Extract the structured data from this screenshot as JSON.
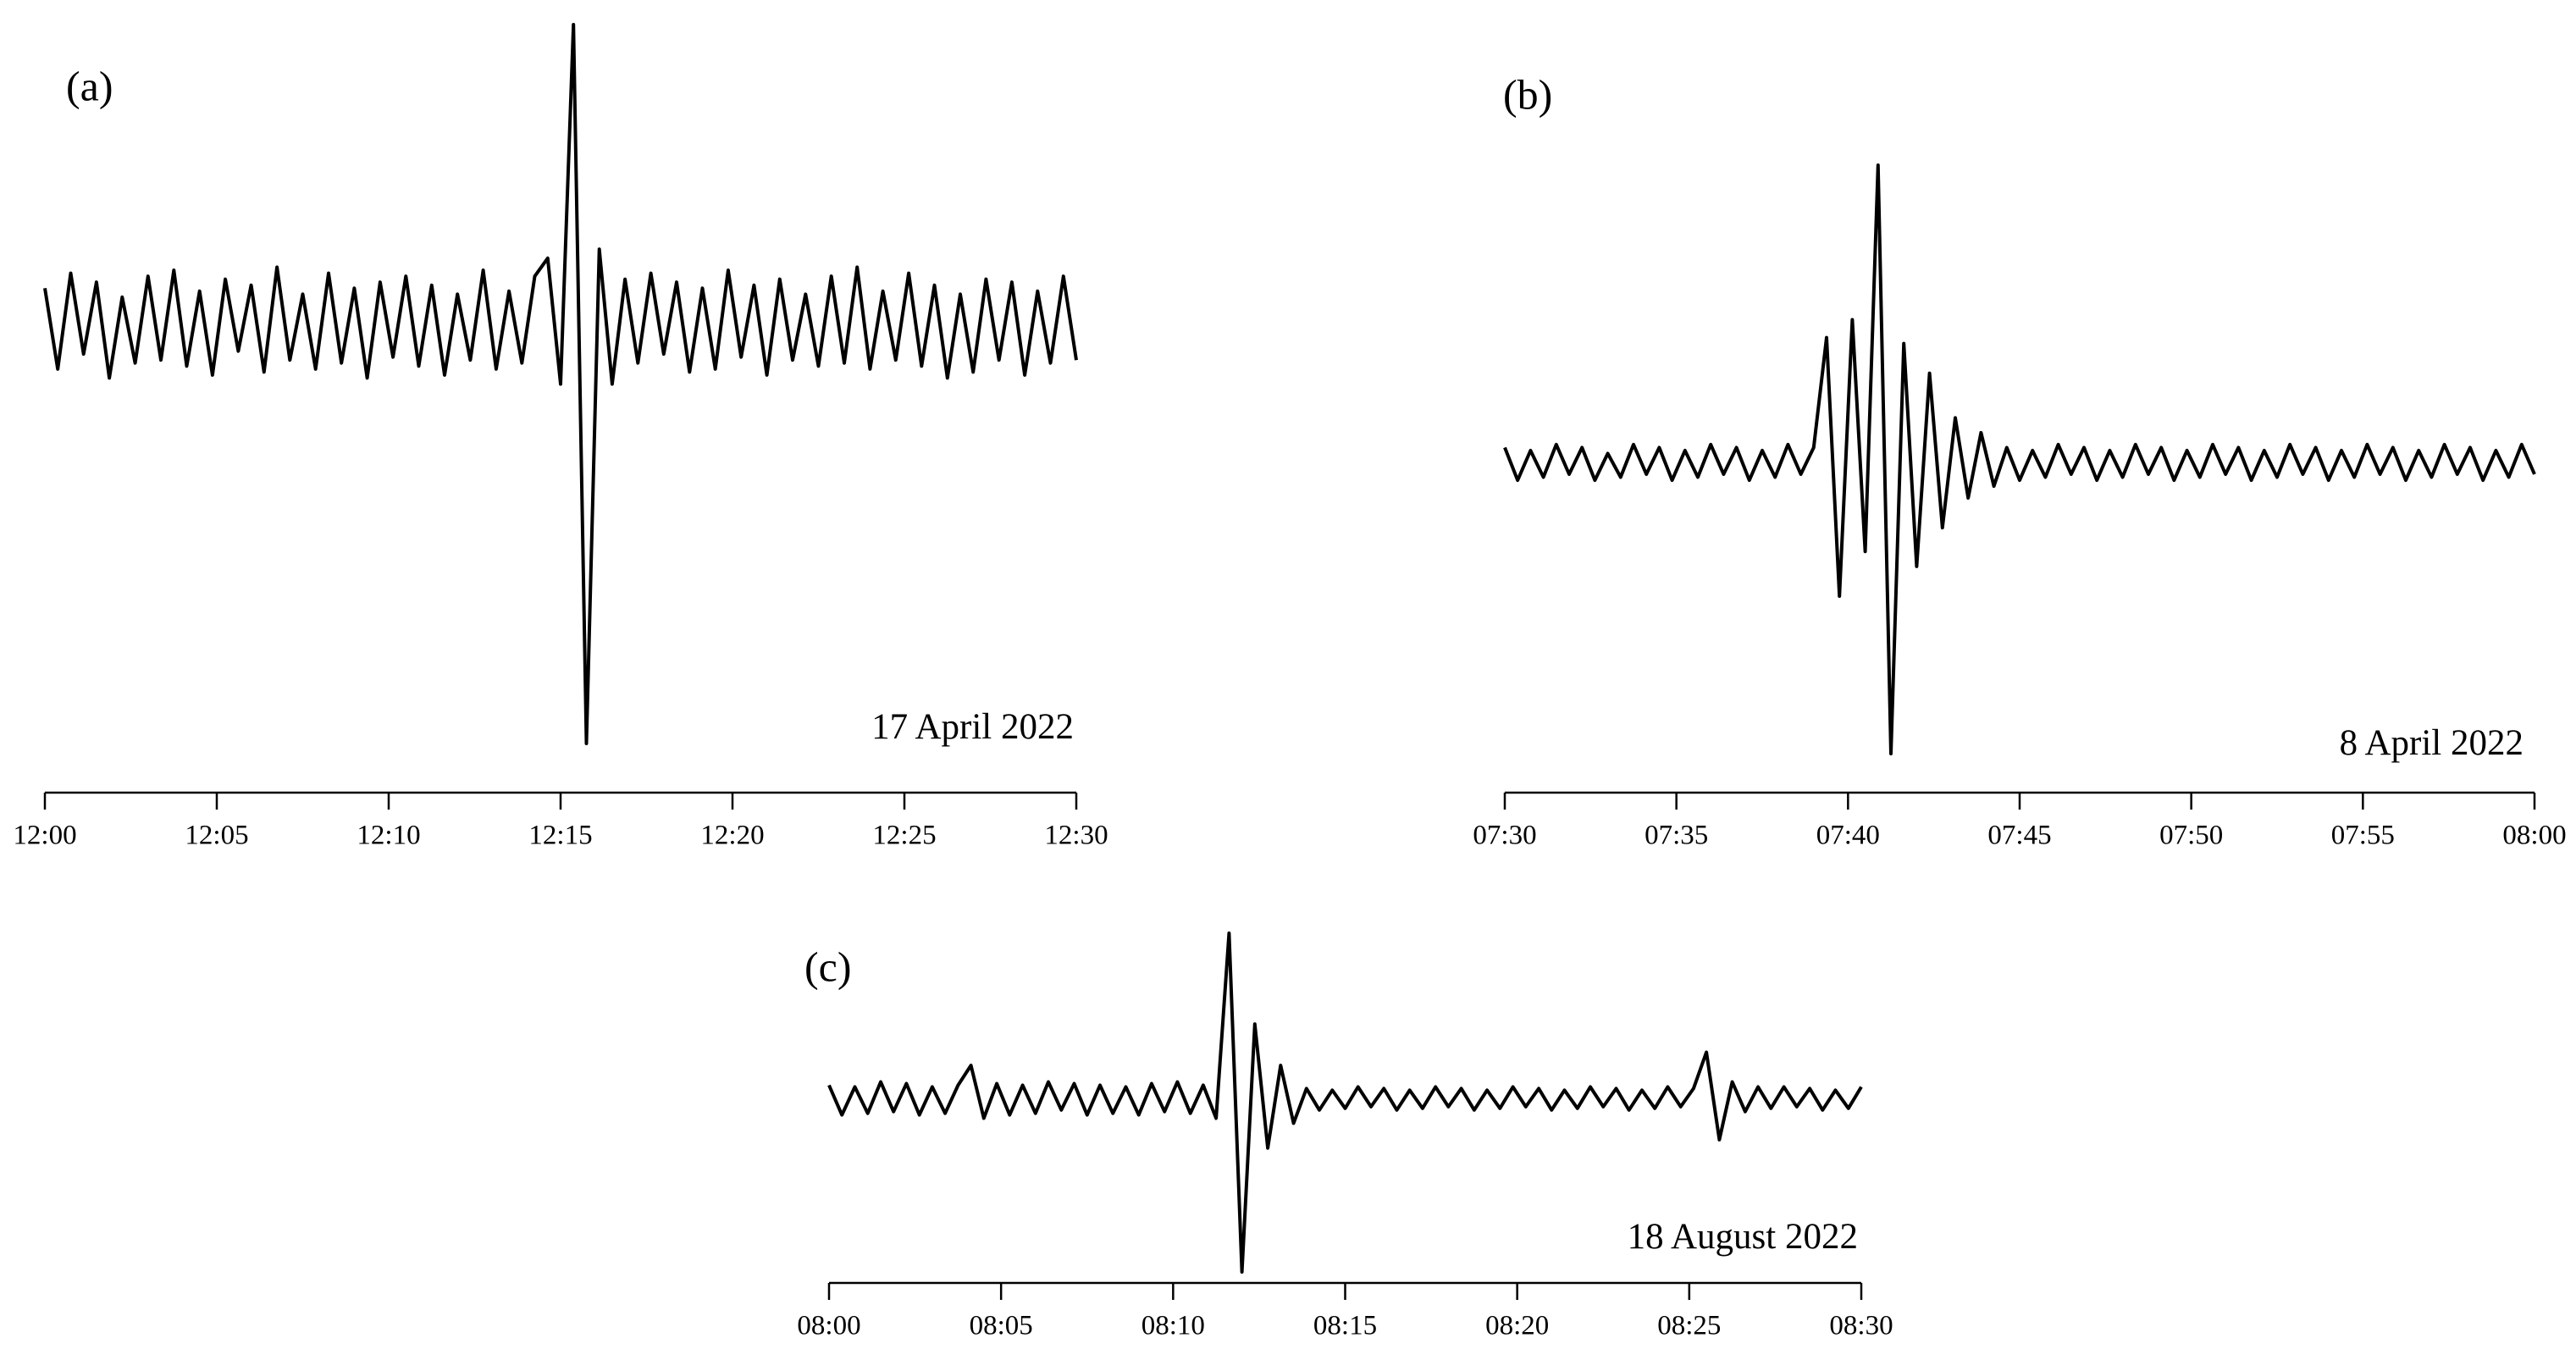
{
  "chart_data": [
    {
      "type": "line",
      "label": "(a)",
      "annotation": "17 April 2022",
      "color": "#000000",
      "xlim": [
        "12:00",
        "12:30"
      ],
      "xticks": [
        "12:00",
        "12:05",
        "12:10",
        "12:15",
        "12:20",
        "12:25",
        "12:30"
      ],
      "ylim": [
        -1.4,
        1
      ],
      "values": [
        0.12,
        -0.15,
        0.17,
        -0.1,
        0.14,
        -0.18,
        0.09,
        -0.13,
        0.16,
        -0.12,
        0.18,
        -0.14,
        0.11,
        -0.17,
        0.15,
        -0.09,
        0.13,
        -0.16,
        0.19,
        -0.12,
        0.1,
        -0.15,
        0.17,
        -0.13,
        0.12,
        -0.18,
        0.14,
        -0.11,
        0.16,
        -0.14,
        0.13,
        -0.17,
        0.1,
        -0.12,
        0.18,
        -0.15,
        0.11,
        -0.13,
        0.16,
        0.22,
        -0.2,
        1,
        -1.4,
        0.25,
        -0.2,
        0.15,
        -0.13,
        0.17,
        -0.1,
        0.14,
        -0.16,
        0.12,
        -0.15,
        0.18,
        -0.11,
        0.13,
        -0.17,
        0.15,
        -0.12,
        0.1,
        -0.14,
        0.16,
        -0.13,
        0.19,
        -0.15,
        0.11,
        -0.12,
        0.17,
        -0.14,
        0.13,
        -0.18,
        0.1,
        -0.16,
        0.15,
        -0.12,
        0.14,
        -0.17,
        0.11,
        -0.13,
        0.16,
        -0.12
      ]
    },
    {
      "type": "line",
      "label": "(b)",
      "annotation": "8 April 2022",
      "color": "#000000",
      "xlim": [
        "07:30",
        "08:00"
      ],
      "xticks": [
        "07:30",
        "07:35",
        "07:40",
        "07:45",
        "07:50",
        "07:55",
        "08:00"
      ],
      "ylim": [
        -1,
        1
      ],
      "values": [
        0.05,
        -0.06,
        0.04,
        -0.05,
        0.06,
        -0.04,
        0.05,
        -0.06,
        0.03,
        -0.05,
        0.06,
        -0.04,
        0.05,
        -0.06,
        0.04,
        -0.05,
        0.06,
        -0.04,
        0.05,
        -0.06,
        0.04,
        -0.05,
        0.06,
        -0.04,
        0.05,
        0.42,
        -0.45,
        0.48,
        -0.3,
        1,
        -0.98,
        0.4,
        -0.35,
        0.3,
        -0.22,
        0.15,
        -0.12,
        0.1,
        -0.08,
        0.05,
        -0.06,
        0.04,
        -0.05,
        0.06,
        -0.04,
        0.05,
        -0.06,
        0.04,
        -0.05,
        0.06,
        -0.04,
        0.05,
        -0.06,
        0.04,
        -0.05,
        0.06,
        -0.04,
        0.05,
        -0.06,
        0.04,
        -0.05,
        0.06,
        -0.04,
        0.05,
        -0.06,
        0.04,
        -0.05,
        0.06,
        -0.04,
        0.05,
        -0.06,
        0.04,
        -0.05,
        0.06,
        -0.04,
        0.05,
        -0.06,
        0.04,
        -0.05,
        0.06,
        -0.04
      ]
    },
    {
      "type": "line",
      "label": "(c)",
      "annotation": "18 August 2022",
      "color": "#000000",
      "xlim": [
        "08:00",
        "08:30"
      ],
      "xticks": [
        "08:00",
        "08:05",
        "08:10",
        "08:15",
        "08:20",
        "08:25",
        "08:30"
      ],
      "ylim": [
        -1.05,
        1
      ],
      "values": [
        0.08,
        -0.1,
        0.07,
        -0.09,
        0.1,
        -0.08,
        0.09,
        -0.1,
        0.07,
        -0.09,
        0.08,
        0.2,
        -0.12,
        0.09,
        -0.1,
        0.08,
        -0.09,
        0.1,
        -0.07,
        0.09,
        -0.1,
        0.08,
        -0.09,
        0.07,
        -0.1,
        0.09,
        -0.08,
        0.1,
        -0.09,
        0.08,
        -0.12,
        1,
        -1.05,
        0.45,
        -0.3,
        0.2,
        -0.15,
        0.06,
        -0.07,
        0.05,
        -0.06,
        0.07,
        -0.05,
        0.06,
        -0.07,
        0.05,
        -0.06,
        0.07,
        -0.05,
        0.06,
        -0.07,
        0.05,
        -0.06,
        0.07,
        -0.05,
        0.06,
        -0.07,
        0.05,
        -0.06,
        0.07,
        -0.05,
        0.06,
        -0.07,
        0.05,
        -0.06,
        0.07,
        -0.05,
        0.06,
        0.28,
        -0.25,
        0.1,
        -0.08,
        0.07,
        -0.06,
        0.07,
        -0.05,
        0.06,
        -0.07,
        0.05,
        -0.06,
        0.07
      ]
    }
  ]
}
